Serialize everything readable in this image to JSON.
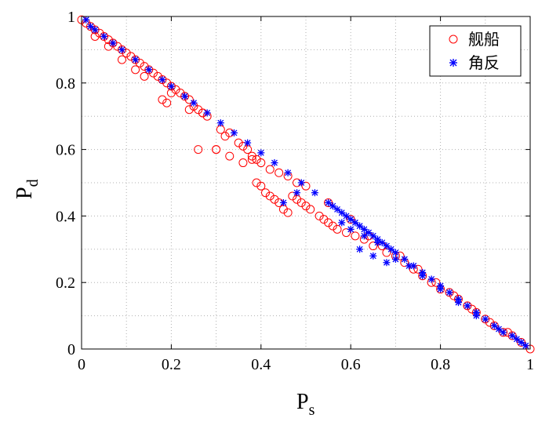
{
  "chart_data": {
    "type": "scatter",
    "title": "",
    "xlabel": {
      "main": "P",
      "sub": "s"
    },
    "ylabel": {
      "main": "P",
      "sub": "d"
    },
    "xlim": [
      0,
      1
    ],
    "ylim": [
      0,
      1
    ],
    "xticks": [
      0,
      0.2,
      0.4,
      0.6,
      0.8,
      1
    ],
    "yticks": [
      0,
      0.2,
      0.4,
      0.6,
      0.8,
      1
    ],
    "xtick_labels": [
      "0",
      "0.2",
      "0.4",
      "0.6",
      "0.8",
      "1"
    ],
    "ytick_labels": [
      "0",
      "0.2",
      "0.4",
      "0.6",
      "0.8",
      "1"
    ],
    "grid": true,
    "minor_grid": true,
    "legend_position": "top-right",
    "series": [
      {
        "name": "舰船",
        "marker": "circle",
        "color": "#ff0000",
        "x": [
          0.0,
          0.01,
          0.02,
          0.03,
          0.04,
          0.05,
          0.06,
          0.07,
          0.08,
          0.09,
          0.1,
          0.11,
          0.12,
          0.13,
          0.14,
          0.15,
          0.16,
          0.17,
          0.18,
          0.19,
          0.2,
          0.21,
          0.22,
          0.23,
          0.24,
          0.25,
          0.26,
          0.27,
          0.28,
          0.03,
          0.06,
          0.09,
          0.12,
          0.14,
          0.18,
          0.19,
          0.2,
          0.24,
          0.27,
          0.3,
          0.31,
          0.32,
          0.33,
          0.35,
          0.36,
          0.37,
          0.38,
          0.39,
          0.4,
          0.42,
          0.44,
          0.46,
          0.48,
          0.5,
          0.26,
          0.3,
          0.33,
          0.36,
          0.38,
          0.39,
          0.4,
          0.41,
          0.42,
          0.43,
          0.44,
          0.45,
          0.46,
          0.47,
          0.48,
          0.49,
          0.5,
          0.51,
          0.53,
          0.54,
          0.55,
          0.56,
          0.57,
          0.59,
          0.61,
          0.63,
          0.65,
          0.68,
          0.7,
          0.72,
          0.74,
          0.76,
          0.78,
          0.8,
          0.82,
          0.84,
          0.86,
          0.88,
          0.9,
          0.92,
          0.94,
          0.96,
          0.98,
          1.0,
          0.55,
          0.6,
          0.64,
          0.67,
          0.71,
          0.75,
          0.79,
          0.83,
          0.87,
          0.91,
          0.95
        ],
        "y": [
          0.99,
          0.98,
          0.97,
          0.96,
          0.95,
          0.94,
          0.93,
          0.92,
          0.91,
          0.9,
          0.89,
          0.88,
          0.87,
          0.86,
          0.85,
          0.84,
          0.83,
          0.82,
          0.81,
          0.8,
          0.79,
          0.78,
          0.77,
          0.76,
          0.75,
          0.73,
          0.72,
          0.71,
          0.7,
          0.94,
          0.91,
          0.87,
          0.84,
          0.82,
          0.75,
          0.74,
          0.77,
          0.72,
          0.71,
          0.6,
          0.66,
          0.64,
          0.65,
          0.62,
          0.61,
          0.6,
          0.58,
          0.57,
          0.56,
          0.54,
          0.53,
          0.52,
          0.5,
          0.49,
          0.6,
          0.6,
          0.58,
          0.56,
          0.57,
          0.5,
          0.49,
          0.47,
          0.46,
          0.45,
          0.44,
          0.42,
          0.41,
          0.46,
          0.45,
          0.44,
          0.43,
          0.42,
          0.4,
          0.39,
          0.38,
          0.37,
          0.36,
          0.35,
          0.34,
          0.33,
          0.31,
          0.29,
          0.28,
          0.26,
          0.24,
          0.22,
          0.2,
          0.18,
          0.17,
          0.15,
          0.13,
          0.11,
          0.09,
          0.07,
          0.05,
          0.04,
          0.02,
          0.0,
          0.44,
          0.39,
          0.34,
          0.31,
          0.28,
          0.24,
          0.2,
          0.16,
          0.12,
          0.08,
          0.05
        ]
      },
      {
        "name": "角反",
        "marker": "asterisk",
        "color": "#0000ff",
        "x": [
          0.01,
          0.02,
          0.03,
          0.05,
          0.07,
          0.09,
          0.12,
          0.15,
          0.18,
          0.2,
          0.23,
          0.25,
          0.28,
          0.31,
          0.34,
          0.37,
          0.4,
          0.43,
          0.46,
          0.49,
          0.52,
          0.55,
          0.56,
          0.57,
          0.58,
          0.59,
          0.6,
          0.61,
          0.62,
          0.63,
          0.64,
          0.65,
          0.66,
          0.67,
          0.68,
          0.69,
          0.7,
          0.72,
          0.74,
          0.76,
          0.78,
          0.8,
          0.82,
          0.84,
          0.86,
          0.88,
          0.9,
          0.92,
          0.94,
          0.96,
          0.97,
          0.98,
          0.99,
          0.45,
          0.48,
          0.62,
          0.65,
          0.68,
          0.58,
          0.6,
          0.63,
          0.66,
          0.7,
          0.73,
          0.76,
          0.8,
          0.84,
          0.88,
          0.93
        ],
        "y": [
          0.99,
          0.97,
          0.96,
          0.94,
          0.92,
          0.9,
          0.87,
          0.84,
          0.81,
          0.79,
          0.76,
          0.74,
          0.71,
          0.68,
          0.65,
          0.62,
          0.59,
          0.56,
          0.53,
          0.5,
          0.47,
          0.44,
          0.43,
          0.42,
          0.41,
          0.4,
          0.39,
          0.38,
          0.37,
          0.36,
          0.35,
          0.34,
          0.33,
          0.32,
          0.31,
          0.3,
          0.29,
          0.27,
          0.25,
          0.23,
          0.21,
          0.19,
          0.17,
          0.15,
          0.13,
          0.11,
          0.09,
          0.07,
          0.05,
          0.04,
          0.03,
          0.02,
          0.01,
          0.44,
          0.47,
          0.3,
          0.28,
          0.26,
          0.38,
          0.36,
          0.34,
          0.32,
          0.27,
          0.25,
          0.22,
          0.18,
          0.14,
          0.1,
          0.06
        ]
      }
    ]
  }
}
